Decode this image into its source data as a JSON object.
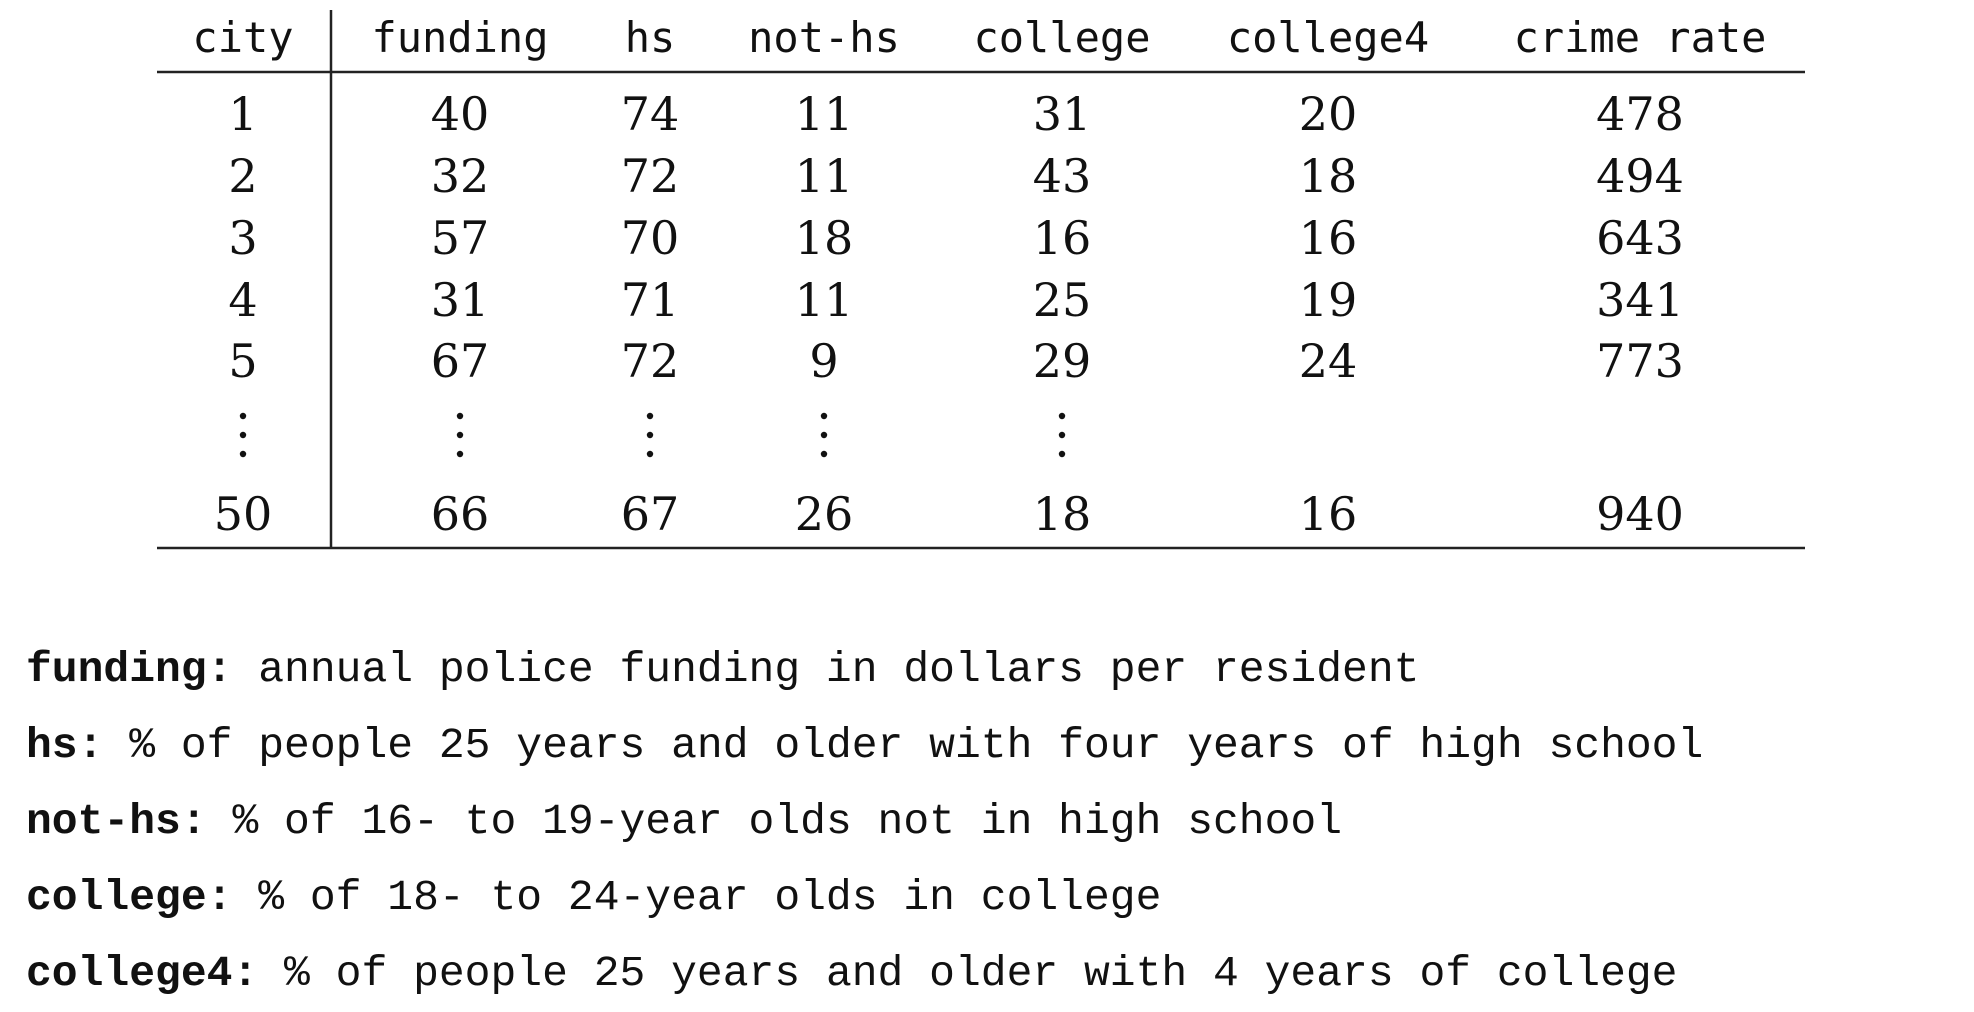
{
  "table": {
    "headers": [
      "city",
      "funding",
      "hs",
      "not-hs",
      "college",
      "college4",
      "crime rate"
    ],
    "rows": [
      [
        "1",
        "40",
        "74",
        "11",
        "31",
        "20",
        "478"
      ],
      [
        "2",
        "32",
        "72",
        "11",
        "43",
        "18",
        "494"
      ],
      [
        "3",
        "57",
        "70",
        "18",
        "16",
        "16",
        "643"
      ],
      [
        "4",
        "31",
        "71",
        "11",
        "25",
        "19",
        "341"
      ],
      [
        "5",
        "67",
        "72",
        "9",
        "29",
        "24",
        "773"
      ]
    ],
    "ellipsis_columns": [
      "city",
      "funding",
      "hs",
      "not-hs",
      "college"
    ],
    "last_row": [
      "50",
      "66",
      "67",
      "26",
      "18",
      "16",
      "940"
    ]
  },
  "definitions": [
    {
      "term": "funding:",
      "text": " annual police funding in dollars per resident"
    },
    {
      "term": "hs:",
      "text": " % of people 25 years and older with four years of high school"
    },
    {
      "term": "not-hs:",
      "text": " % of 16- to 19-year olds not in high school"
    },
    {
      "term": "college:",
      "text": " % of 18- to 24-year olds in college"
    },
    {
      "term": "college4:",
      "text": " % of people 25 years and older with 4 years of college"
    }
  ]
}
